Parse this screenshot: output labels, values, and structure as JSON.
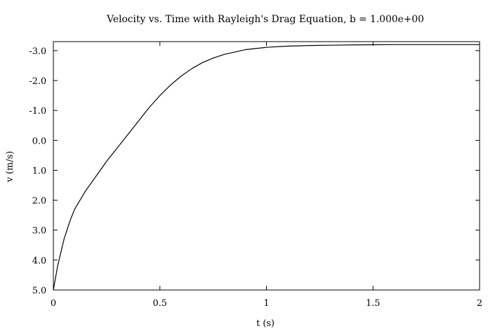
{
  "chart_data": {
    "type": "line",
    "title": "Velocity vs. Time with Rayleigh's Drag Equation, b = 1.000e+00",
    "xlabel": "t (s)",
    "ylabel": "v (m/s)",
    "xlim": [
      0,
      2
    ],
    "ylim": [
      5.0,
      -3.3
    ],
    "y_axis_inverted": true,
    "grid": false,
    "x_ticks": [
      0,
      0.5,
      1,
      1.5,
      2
    ],
    "x_tick_labels": [
      "0",
      "0.5",
      "1",
      "1.5",
      "2"
    ],
    "y_ticks": [
      -3.0,
      -2.0,
      -1.0,
      0.0,
      1.0,
      2.0,
      3.0,
      4.0,
      5.0
    ],
    "y_tick_labels": [
      "-3.0",
      "-2.0",
      "-1.0",
      "0.0",
      "1.0",
      "2.0",
      "3.0",
      "4.0",
      "5.0"
    ],
    "series": [
      {
        "color": "#000000",
        "x": [
          0.0,
          0.02,
          0.05,
          0.08,
          0.1,
          0.15,
          0.2,
          0.25,
          0.3,
          0.35,
          0.4,
          0.45,
          0.5,
          0.55,
          0.6,
          0.65,
          0.7,
          0.75,
          0.8,
          0.9,
          1.0,
          1.1,
          1.2,
          1.3,
          1.4,
          1.5,
          1.6,
          1.7,
          1.8,
          1.9,
          2.0
        ],
        "y": [
          5.0,
          4.2,
          3.3,
          2.65,
          2.3,
          1.7,
          1.2,
          0.7,
          0.25,
          -0.2,
          -0.65,
          -1.1,
          -1.5,
          -1.85,
          -2.15,
          -2.4,
          -2.6,
          -2.75,
          -2.87,
          -3.03,
          -3.11,
          -3.15,
          -3.17,
          -3.18,
          -3.19,
          -3.195,
          -3.2,
          -3.2,
          -3.2,
          -3.2,
          -3.2
        ]
      }
    ]
  }
}
